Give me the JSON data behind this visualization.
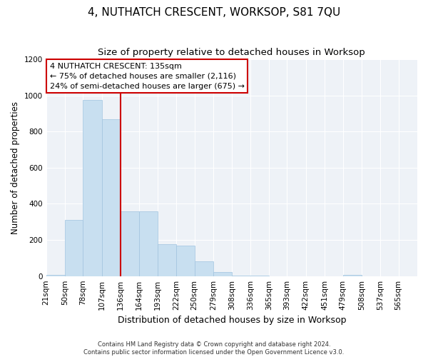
{
  "title": "4, NUTHATCH CRESCENT, WORKSOP, S81 7QU",
  "subtitle": "Size of property relative to detached houses in Worksop",
  "xlabel": "Distribution of detached houses by size in Worksop",
  "ylabel": "Number of detached properties",
  "footer_line1": "Contains HM Land Registry data © Crown copyright and database right 2024.",
  "footer_line2": "Contains public sector information licensed under the Open Government Licence v3.0.",
  "annotation_title": "4 NUTHATCH CRESCENT: 135sqm",
  "annotation_line1": "← 75% of detached houses are smaller (2,116)",
  "annotation_line2": "24% of semi-detached houses are larger (675) →",
  "bar_color": "#c8dff0",
  "bar_edge_color": "#a0c4df",
  "vline_color": "#cc0000",
  "vline_x": 136,
  "annotation_box_edgecolor": "#cc0000",
  "background_color": "#eef2f7",
  "fig_background": "#ffffff",
  "ylim": [
    0,
    1200
  ],
  "yticks": [
    0,
    200,
    400,
    600,
    800,
    1000,
    1200
  ],
  "bin_edges": [
    21,
    50,
    78,
    107,
    136,
    164,
    193,
    222,
    250,
    279,
    308,
    336,
    365,
    393,
    422,
    451,
    479,
    508,
    537,
    565,
    594
  ],
  "bar_heights": [
    5,
    310,
    975,
    870,
    360,
    360,
    175,
    170,
    80,
    22,
    4,
    1,
    0,
    0,
    0,
    0,
    5,
    0,
    0,
    0
  ],
  "title_fontsize": 11,
  "subtitle_fontsize": 9.5,
  "xlabel_fontsize": 9,
  "ylabel_fontsize": 8.5,
  "tick_fontsize": 7.5,
  "annotation_fontsize": 8,
  "footer_fontsize": 6
}
